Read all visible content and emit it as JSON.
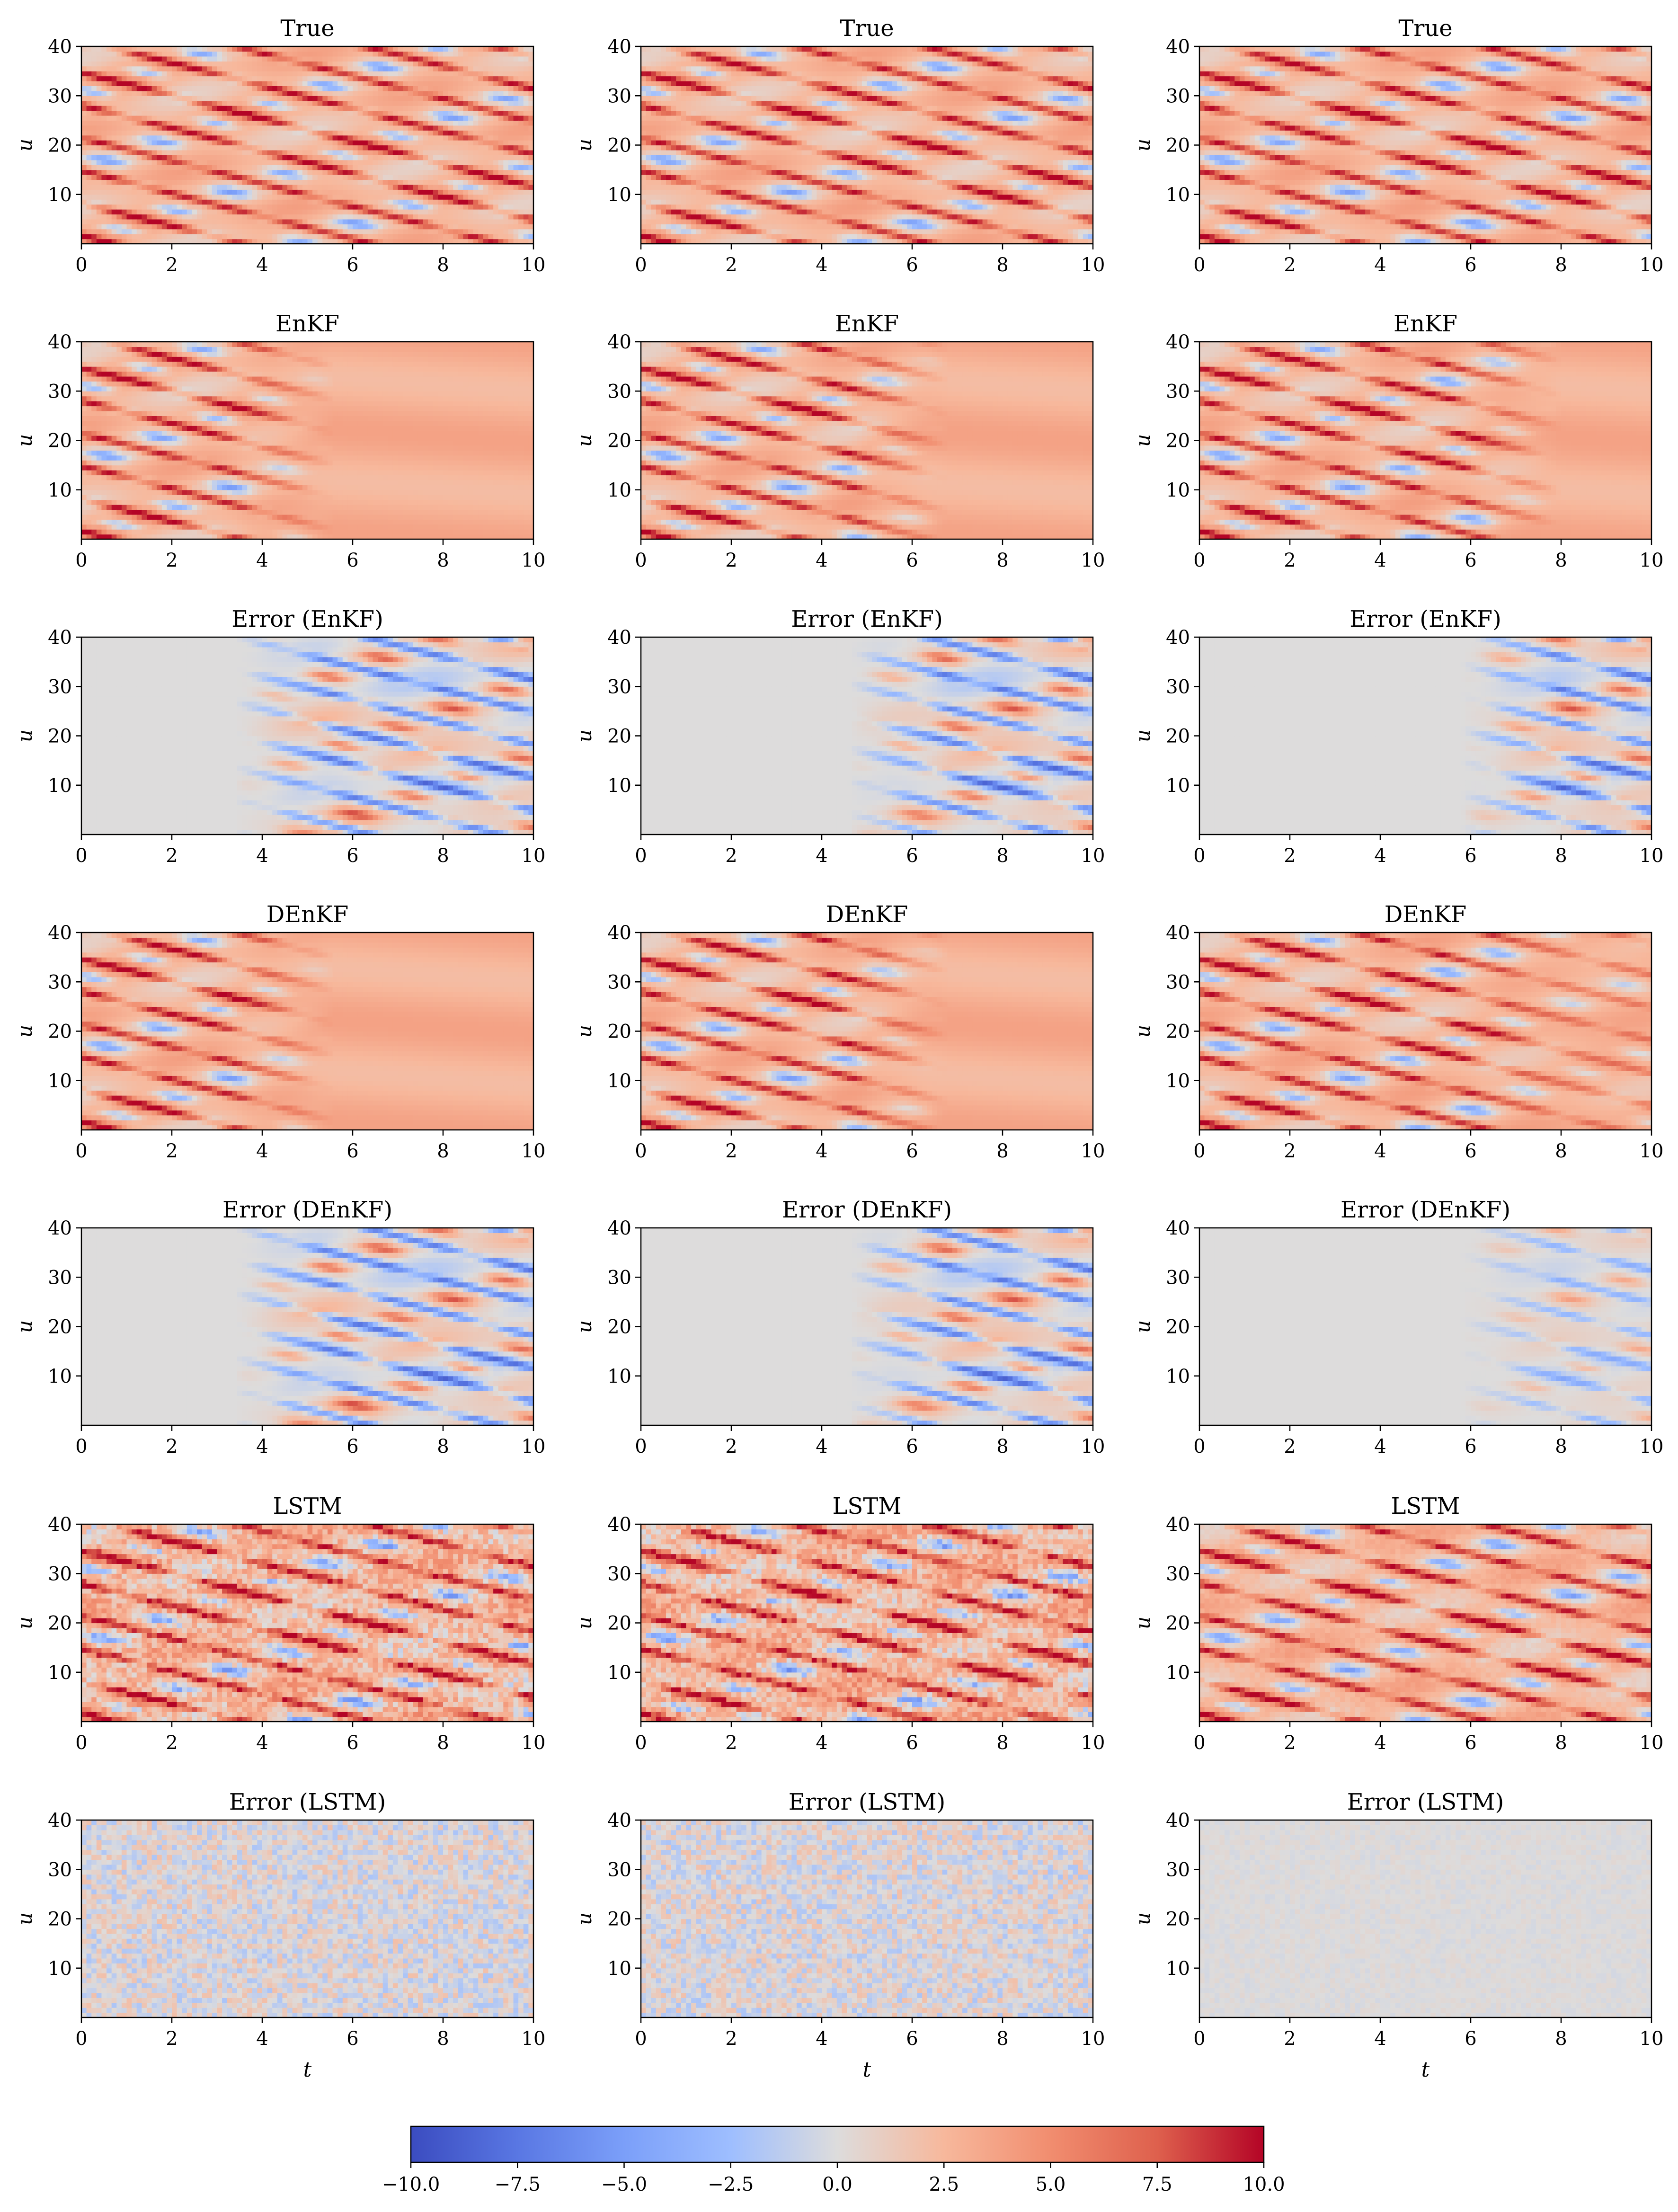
{
  "chart_data": {
    "type": "heatmap",
    "layout": "7 rows x 3 columns of heatmap subplots sharing one horizontal colorbar",
    "colormap": "coolwarm",
    "value_range": [
      -10.0,
      10.0
    ],
    "x_axis": {
      "range": [
        0,
        10
      ],
      "ticks": [
        "0",
        "2",
        "4",
        "6",
        "8",
        "10"
      ]
    },
    "y_axis": {
      "range": [
        0,
        40
      ],
      "ticks": [
        "10",
        "20",
        "30",
        "40"
      ],
      "label": "u"
    },
    "bottom_row_xlabel": "t",
    "rows": [
      {
        "title": "True",
        "kind": "field",
        "degradation": [
          0,
          0,
          0
        ],
        "noise": [
          0,
          0,
          0
        ]
      },
      {
        "title": "EnKF",
        "kind": "field",
        "degradation": [
          1,
          1,
          0.1
        ],
        "noise": [
          0,
          0,
          0
        ]
      },
      {
        "title": "Error (EnKF)",
        "kind": "error",
        "degradation": [
          1,
          1,
          0.1
        ],
        "noise": [
          0,
          0,
          0
        ]
      },
      {
        "title": "DEnKF",
        "kind": "field",
        "degradation": [
          1,
          1,
          0.05
        ],
        "noise": [
          0,
          0,
          0
        ]
      },
      {
        "title": "Error (DEnKF)",
        "kind": "error",
        "degradation": [
          1,
          1,
          0.05
        ],
        "noise": [
          0,
          0,
          0
        ]
      },
      {
        "title": "LSTM",
        "kind": "field",
        "degradation": [
          0,
          0,
          0
        ],
        "noise": [
          0.1,
          0.1,
          0.02
        ]
      },
      {
        "title": "Error (LSTM)",
        "kind": "error",
        "degradation": [
          0,
          0,
          0
        ],
        "noise": [
          0.1,
          0.1,
          0.02
        ]
      }
    ],
    "colorbar": {
      "ticks": [
        "−10.0",
        "−7.5",
        "−5.0",
        "−2.5",
        "0.0",
        "2.5",
        "5.0",
        "7.5",
        "10.0"
      ],
      "values": [
        -10,
        -7.5,
        -5,
        -2.5,
        0,
        2.5,
        5,
        7.5,
        10
      ]
    }
  }
}
